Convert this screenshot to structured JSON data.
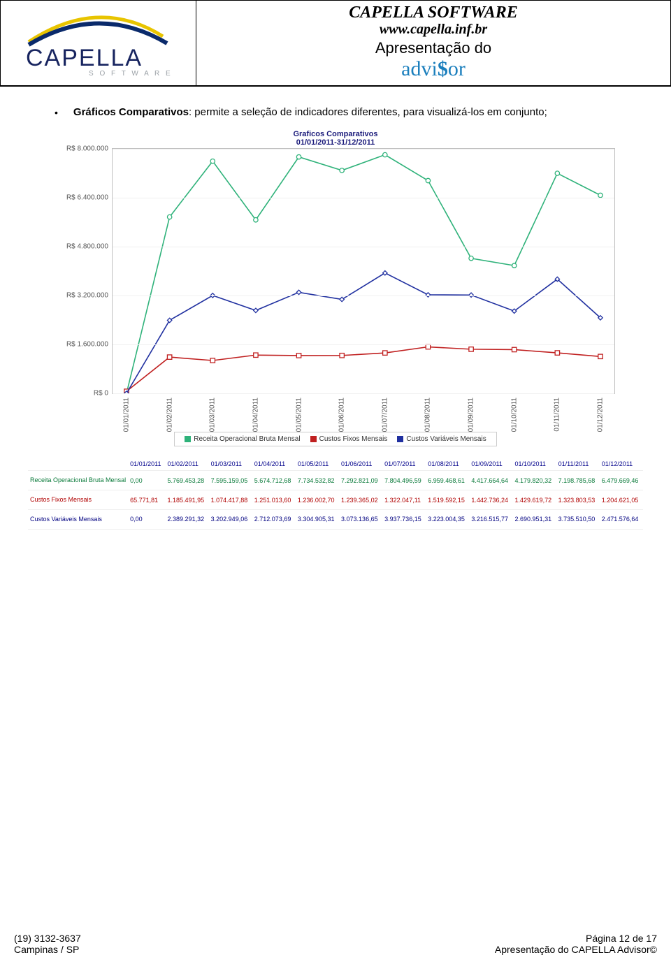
{
  "header": {
    "company": "CAPELLA SOFTWARE",
    "site": "www.capella.inf.br",
    "line1": "Apresentação do",
    "brand_prefix": "advi",
    "brand_s": "$",
    "brand_suffix": "or",
    "brand_color": "#1b7fbd",
    "logo": {
      "word": "CAPELLA",
      "sub": "S O F T W A R E",
      "swoosh_color1": "#e8c400",
      "swoosh_color2": "#0a2a6b",
      "text_color": "#17245f",
      "sub_color": "#9aa0a6"
    }
  },
  "bullet": {
    "title": "Gráficos Comparativos",
    "rest": ": permite a seleção de indicadores diferentes, para visualizá-los em conjunto;"
  },
  "chart": {
    "title1": "Graficos Comparativos",
    "title2": "01/01/2011-31/12/2011",
    "type": "line",
    "background_color": "#ffffff",
    "grid_color": "#f0f0f0",
    "border_color": "#bfbfbf",
    "ylim": [
      0,
      8000000
    ],
    "ytick_step": 1600000,
    "yticks": [
      "R$ 0",
      "R$ 1.600.000",
      "R$ 3.200.000",
      "R$ 4.800.000",
      "R$ 6.400.000",
      "R$ 8.000.000"
    ],
    "xcats": [
      "01/01/2011",
      "01/02/2011",
      "01/03/2011",
      "01/04/2011",
      "01/05/2011",
      "01/06/2011",
      "01/07/2011",
      "01/08/2011",
      "01/09/2011",
      "01/10/2011",
      "01/11/2011",
      "01/12/2011"
    ],
    "series": [
      {
        "name": "Receita Operacional Bruta Mensal",
        "color": "#2fb27a",
        "marker": "circle",
        "values": [
          0,
          5769453.28,
          7595159.05,
          5674712.68,
          7734532.82,
          7292821.09,
          7804496.59,
          6959468.61,
          4417664.64,
          4179820.32,
          7198785.68,
          6479669.46
        ]
      },
      {
        "name": "Custos Fixos Mensais",
        "color": "#c02020",
        "marker": "square",
        "values": [
          65771.81,
          1185491.95,
          1074417.88,
          1251013.6,
          1236002.7,
          1239365.02,
          1322047.11,
          1519592.15,
          1442736.24,
          1429619.72,
          1323803.53,
          1204621.05
        ]
      },
      {
        "name": "Custos Variáveis Mensais",
        "color": "#2030a0",
        "marker": "diamond",
        "values": [
          0,
          2389291.32,
          3202949.06,
          2712073.69,
          3304905.31,
          3073136.65,
          3937736.15,
          3223004.35,
          3216515.77,
          2690951.31,
          3735510.5,
          2471576.64
        ]
      }
    ],
    "line_width": 1.6,
    "marker_size": 3.2,
    "title_fontsize": 11,
    "label_fontsize": 10
  },
  "table": {
    "headers": [
      "01/01/2011",
      "01/02/2011",
      "01/03/2011",
      "01/04/2011",
      "01/05/2011",
      "01/06/2011",
      "01/07/2011",
      "01/08/2011",
      "01/09/2011",
      "01/10/2011",
      "01/11/2011",
      "01/12/2011"
    ],
    "rows": [
      {
        "label": "Receita Operacional Bruta Mensal",
        "cls": "r-green",
        "cells": [
          "0,00",
          "5.769.453,28",
          "7.595.159,05",
          "5.674.712,68",
          "7.734.532,82",
          "7.292.821,09",
          "7.804.496,59",
          "6.959.468,61",
          "4.417.664,64",
          "4.179.820,32",
          "7.198.785,68",
          "6.479.669,46"
        ]
      },
      {
        "label": "Custos Fixos Mensais",
        "cls": "r-red",
        "cells": [
          "65.771,81",
          "1.185.491,95",
          "1.074.417,88",
          "1.251.013,60",
          "1.236.002,70",
          "1.239.365,02",
          "1.322.047,11",
          "1.519.592,15",
          "1.442.736,24",
          "1.429.619,72",
          "1.323.803,53",
          "1.204.621,05"
        ]
      },
      {
        "label": "Custos Variáveis Mensais",
        "cls": "r-blue",
        "cells": [
          "0,00",
          "2.389.291,32",
          "3.202.949,06",
          "2.712.073,69",
          "3.304.905,31",
          "3.073.136,65",
          "3.937.736,15",
          "3.223.004,35",
          "3.216.515,77",
          "2.690.951,31",
          "3.735.510,50",
          "2.471.576,64"
        ]
      }
    ]
  },
  "footer": {
    "phone": "(19) 3132-3637",
    "city": "Campinas / SP",
    "page": "Página 12 de 17",
    "doc": "Apresentação do CAPELLA Advisor©"
  }
}
